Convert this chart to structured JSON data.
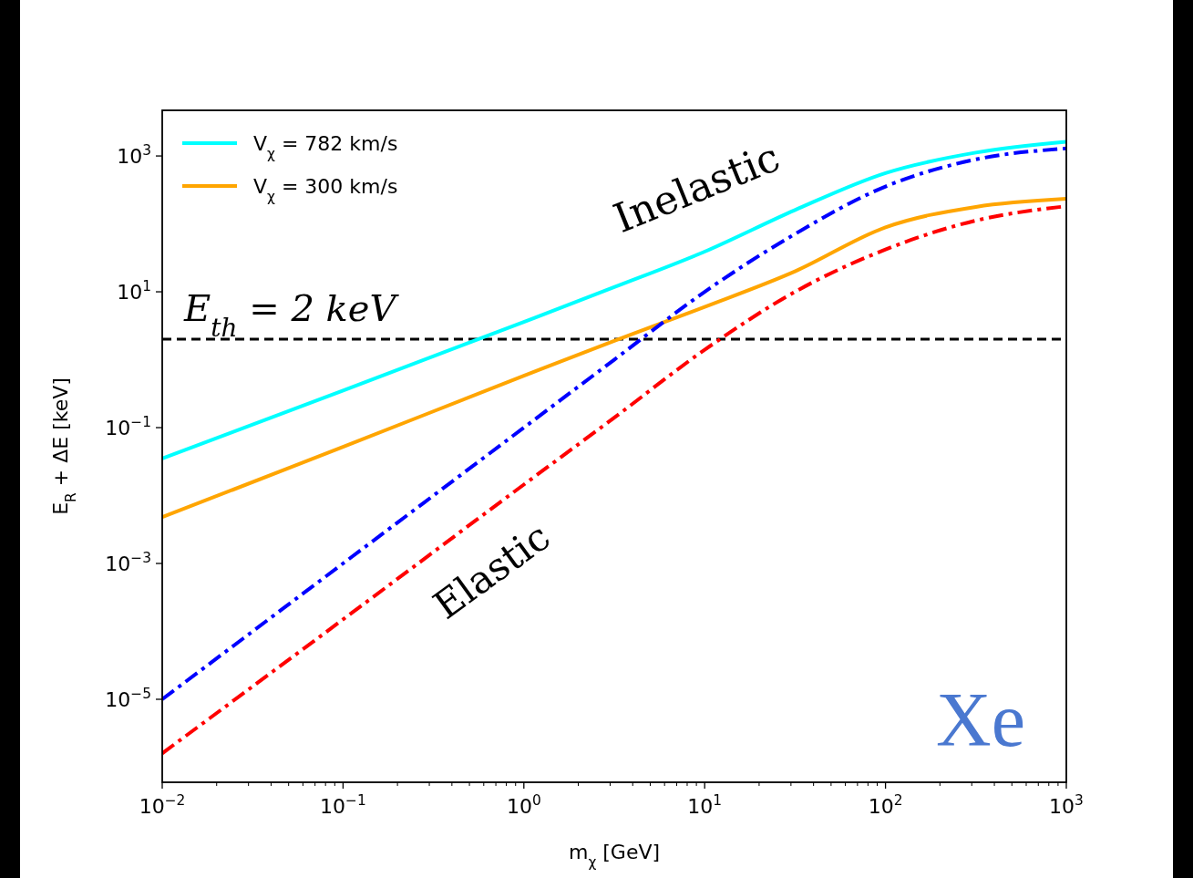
{
  "chart_data": {
    "type": "line",
    "xlabel": "m$_{χ}$ [GeV]",
    "ylabel": "E$_{R}$ + ΔE [keV]",
    "log": "xy",
    "xlim": [
      0.01,
      1000
    ],
    "ylim": [
      6e-07,
      4700
    ],
    "xticks": [
      {
        "value": 0.01,
        "label": "10$^{−2}$"
      },
      {
        "value": 0.1,
        "label": "10$^{−1}$"
      },
      {
        "value": 1,
        "label": "10$^{0}$"
      },
      {
        "value": 10,
        "label": "10$^{1}$"
      },
      {
        "value": 100,
        "label": "10$^{2}$"
      },
      {
        "value": 1000,
        "label": "10$^{3}$"
      }
    ],
    "yticks": [
      {
        "value": 1e-05,
        "label": "10$^{−5}$"
      },
      {
        "value": 0.001,
        "label": "10$^{−3}$"
      },
      {
        "value": 0.1,
        "label": "10$^{−1}$"
      },
      {
        "value": 10,
        "label": "10$^{1}$"
      },
      {
        "value": 1000,
        "label": "10$^{3}$"
      }
    ],
    "x": [
      0.01,
      0.1,
      1,
      3.16,
      10,
      31.6,
      100,
      316,
      1000
    ],
    "series": [
      {
        "name": "V$_{χ}$ = 782 km/s",
        "color": "#00ffff",
        "line_style": "solid",
        "values": [
          0.035,
          0.35,
          3.6,
          11.7,
          39,
          160,
          560,
          1120,
          1620
        ]
      },
      {
        "name": "V$_{χ}$ = 300 km/s",
        "color": "#ffa500",
        "line_style": "solid",
        "values": [
          0.0048,
          0.052,
          0.58,
          1.9,
          6.0,
          20,
          89,
          178,
          234
        ]
      },
      {
        "color": "#0000ff",
        "line_style": "dashdot",
        "values": [
          1e-05,
          0.001,
          0.1,
          1,
          10,
          71,
          355,
          890,
          1290
        ]
      },
      {
        "color": "#ff0000",
        "line_style": "dashdot",
        "values": [
          1.6e-06,
          0.00015,
          0.0145,
          0.14,
          1.4,
          10,
          42,
          112,
          182
        ]
      }
    ],
    "ref_lines": [
      {
        "axis": "y",
        "value": 2,
        "label": "E$_{th}$ = 2 keV",
        "color": "#000000",
        "line_style": "dashed"
      }
    ],
    "annotations": [
      "Inelastic",
      "Elastic",
      "Xe"
    ],
    "legend": "top left",
    "grid": false,
    "marker": "none"
  }
}
